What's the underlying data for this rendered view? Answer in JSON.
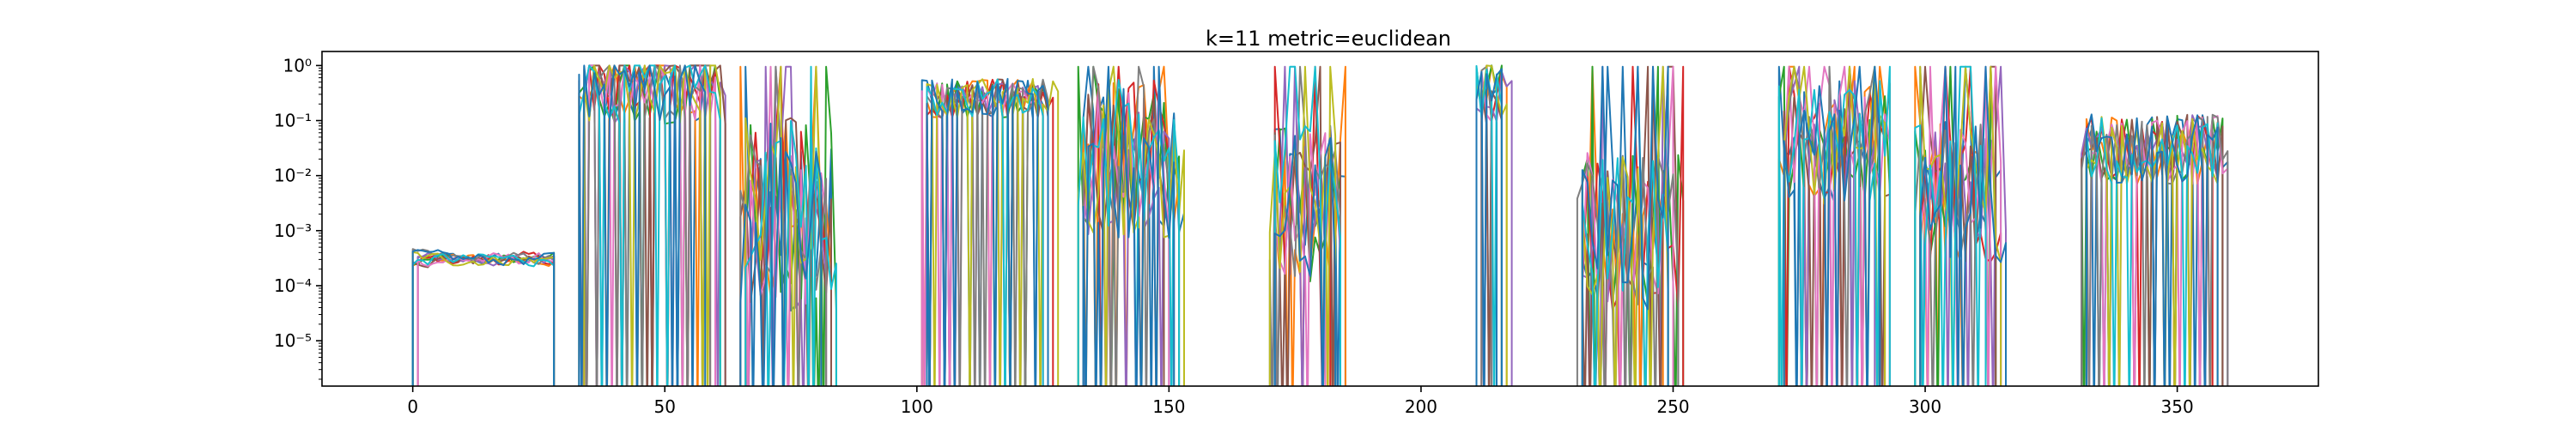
{
  "chart_data": {
    "type": "line",
    "title": "k=11 metric=euclidean",
    "xlabel": "",
    "ylabel": "",
    "yscale": "log",
    "xlim": [
      -18,
      378
    ],
    "ylim": [
      1.5e-06,
      1.8
    ],
    "grid": false,
    "legend": "none",
    "xticks": [
      0,
      50,
      100,
      150,
      200,
      250,
      300,
      350
    ],
    "xtick_labels": [
      "0",
      "50",
      "100",
      "150",
      "200",
      "250",
      "300",
      "350"
    ],
    "yticks": [
      1e-05,
      0.0001,
      0.001,
      0.01,
      0.1,
      1
    ],
    "ytick_labels": [
      "10⁻⁵",
      "10⁻⁴",
      "10⁻³",
      "10⁻²",
      "10⁻¹",
      "10⁰"
    ],
    "palette": [
      "#1f77b4",
      "#ff7f0e",
      "#2ca02c",
      "#d62728",
      "#9467bd",
      "#8c564b",
      "#e377c2",
      "#7f7f7f",
      "#bcbd22",
      "#17becf",
      "#1f77b4"
    ],
    "series_count": 11,
    "segments": [
      {
        "x": [
          0,
          28
        ],
        "level": 0.0003,
        "spread": 0.45,
        "pattern": "smooth",
        "tail": "drop"
      },
      {
        "x": [
          33,
          62
        ],
        "level": 0.45,
        "spread": 0.9,
        "pattern": "noisy",
        "tail": "drop"
      },
      {
        "x": [
          65,
          85
        ],
        "level": 0.002,
        "spread": 2.2,
        "pattern": "spiky",
        "tail": "drop"
      },
      {
        "x": [
          101,
          128
        ],
        "level": 0.25,
        "spread": 0.45,
        "pattern": "noisy",
        "tail": "drop"
      },
      {
        "x": [
          132,
          153
        ],
        "level": 0.02,
        "spread": 1.8,
        "pattern": "spiky",
        "tail": "drop"
      },
      {
        "x": [
          170,
          185
        ],
        "level": 0.003,
        "spread": 1.8,
        "pattern": "spiky",
        "tail": "drop"
      },
      {
        "x": [
          211,
          218
        ],
        "level": 0.3,
        "spread": 0.7,
        "pattern": "spiky",
        "tail": "drop"
      },
      {
        "x": [
          231,
          252
        ],
        "level": 0.001,
        "spread": 1.8,
        "pattern": "spiky",
        "tail": "drop"
      },
      {
        "x": [
          271,
          294
        ],
        "level": 0.04,
        "spread": 1.4,
        "pattern": "spiky",
        "tail": "drop"
      },
      {
        "x": [
          298,
          316
        ],
        "level": 0.005,
        "spread": 1.6,
        "pattern": "spiky",
        "tail": "drop"
      },
      {
        "x": [
          331,
          360
        ],
        "level": 0.03,
        "spread": 0.8,
        "pattern": "noisy",
        "tail": "drop"
      }
    ]
  }
}
